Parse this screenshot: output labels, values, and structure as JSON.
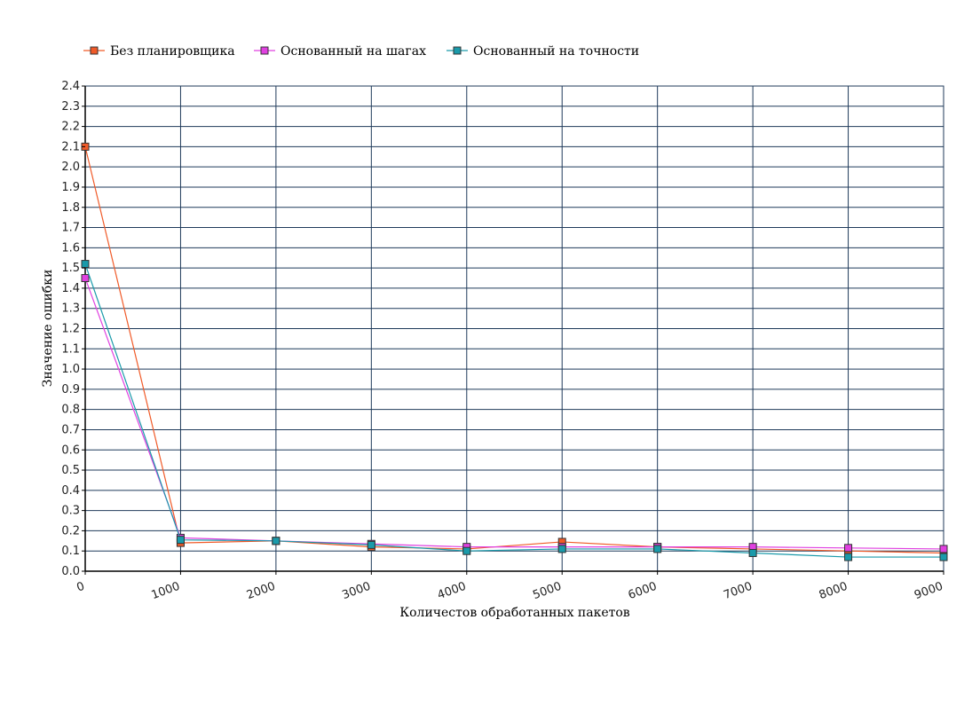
{
  "chart_data": {
    "type": "line",
    "xlabel": "Количестов обработанных пакетов",
    "ylabel": "Значение ошибки",
    "x": [
      0,
      1000,
      2000,
      3000,
      4000,
      5000,
      6000,
      7000,
      8000,
      9000
    ],
    "xticks": [
      "0",
      "1000",
      "2000",
      "3000",
      "4000",
      "5000",
      "6000",
      "7000",
      "8000",
      "9000"
    ],
    "xlim": [
      0,
      9000
    ],
    "ylim": [
      0,
      2.4
    ],
    "yticks": [
      "0.0",
      "0.1",
      "0.2",
      "0.3",
      "0.4",
      "0.5",
      "0.6",
      "0.7",
      "0.8",
      "0.9",
      "1.0",
      "1.1",
      "1.2",
      "1.3",
      "1.4",
      "1.5",
      "1.6",
      "1.7",
      "1.8",
      "1.9",
      "2.0",
      "2.1",
      "2.2",
      "2.3",
      "2.4"
    ],
    "grid": true,
    "legend_position": "top-left",
    "series": [
      {
        "name": "Без планировщика",
        "color": "#f05a28",
        "values": [
          2.1,
          0.14,
          0.15,
          0.12,
          0.11,
          0.145,
          0.12,
          0.11,
          0.1,
          0.09
        ]
      },
      {
        "name": "Основанный на шагах",
        "color": "#e040e0",
        "values": [
          1.45,
          0.165,
          0.15,
          0.135,
          0.12,
          0.12,
          0.12,
          0.12,
          0.115,
          0.11
        ]
      },
      {
        "name": "Основанный на точности",
        "color": "#1a9aaa",
        "values": [
          1.52,
          0.155,
          0.15,
          0.13,
          0.1,
          0.11,
          0.11,
          0.09,
          0.07,
          0.07
        ]
      }
    ]
  }
}
